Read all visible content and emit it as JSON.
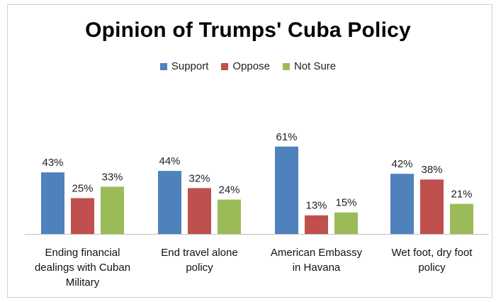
{
  "chart_data": {
    "type": "bar",
    "title": "Opinion of Trumps' Cuba Policy",
    "xlabel": "",
    "ylabel": "",
    "ylim": [
      0,
      70
    ],
    "grid": false,
    "legend_position": "top",
    "categories": [
      [
        "Ending financial",
        "dealings with Cuban",
        "Military"
      ],
      [
        "End travel alone",
        "policy"
      ],
      [
        "American Embassy",
        "in Havana"
      ],
      [
        "Wet foot, dry foot",
        "policy"
      ]
    ],
    "series": [
      {
        "name": "Support",
        "color": "#4f81bd",
        "values": [
          43,
          44,
          61,
          42
        ],
        "labels": [
          "43%",
          "44%",
          "61%",
          "42%"
        ]
      },
      {
        "name": "Oppose",
        "color": "#c0504d",
        "values": [
          25,
          32,
          13,
          38
        ],
        "labels": [
          "25%",
          "32%",
          "13%",
          "38%"
        ]
      },
      {
        "name": "Not Sure",
        "color": "#9bbb59",
        "values": [
          33,
          24,
          15,
          21
        ],
        "labels": [
          "33%",
          "24%",
          "15%",
          "21%"
        ]
      }
    ]
  }
}
